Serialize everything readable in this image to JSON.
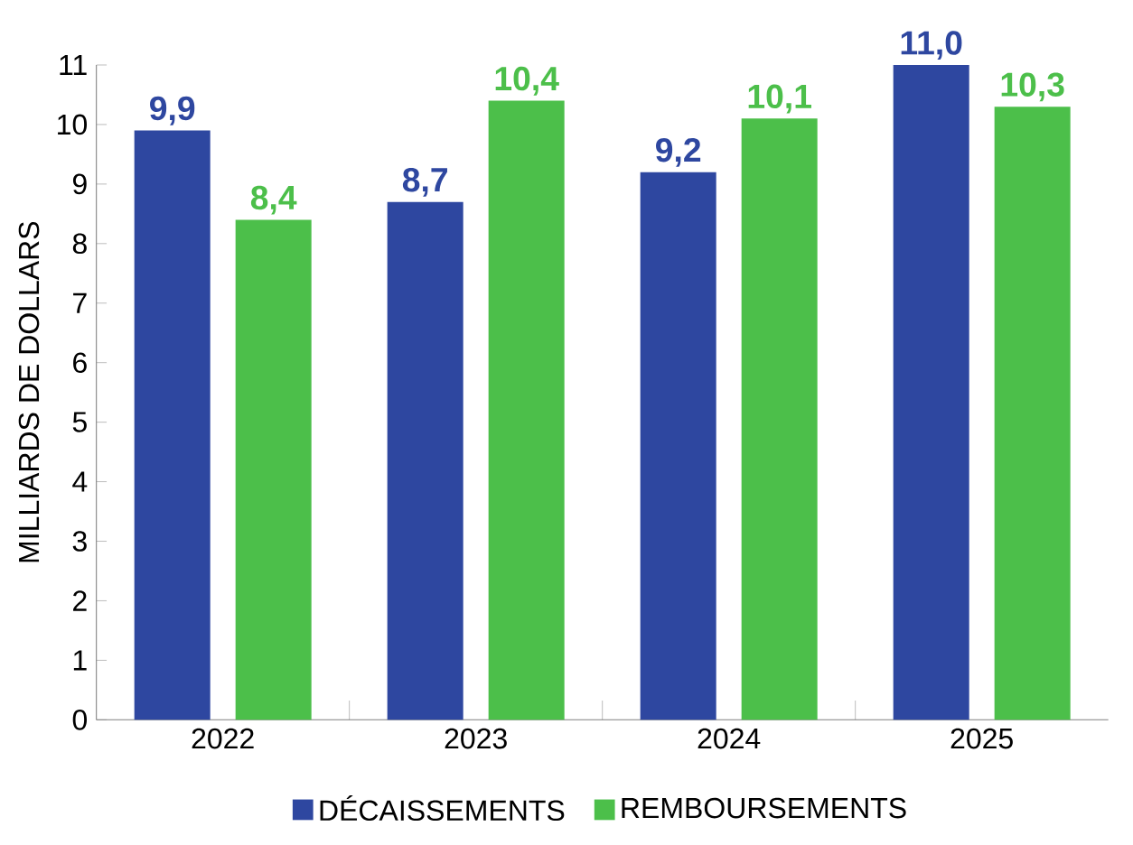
{
  "chart_data": {
    "type": "bar",
    "ylabel": "MILLIARDS DE DOLLARS",
    "categories": [
      "2022",
      "2023",
      "2024",
      "2025"
    ],
    "series": [
      {
        "name": "DÉCAISSEMENTS",
        "color": "#2e47a0",
        "values": [
          9.9,
          8.7,
          9.2,
          11.0
        ],
        "value_labels": [
          "9,9",
          "8,7",
          "9,2",
          "11,0"
        ]
      },
      {
        "name": "REMBOURSEMENTS",
        "color": "#4cbf4a",
        "values": [
          8.4,
          10.4,
          10.1,
          10.3
        ],
        "value_labels": [
          "8,4",
          "10,4",
          "10,1",
          "10,3"
        ]
      }
    ],
    "ylim": [
      0,
      11
    ],
    "yticks": [
      0,
      1,
      2,
      3,
      4,
      5,
      6,
      7,
      8,
      9,
      10,
      11
    ],
    "grid": false,
    "legend": "bottom"
  }
}
